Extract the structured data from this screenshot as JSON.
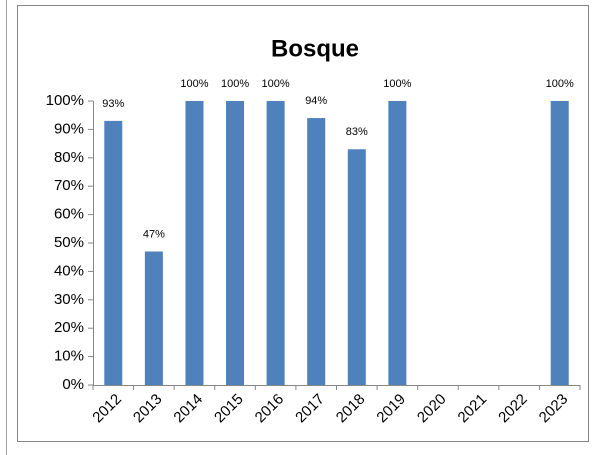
{
  "chart_data": {
    "type": "bar",
    "title": "Bosque",
    "categories": [
      "2012",
      "2013",
      "2014",
      "2015",
      "2016",
      "2017",
      "2018",
      "2019",
      "2020",
      "2021",
      "2022",
      "2023"
    ],
    "values": [
      93,
      47,
      100,
      100,
      100,
      94,
      83,
      100,
      null,
      null,
      null,
      100
    ],
    "value_labels": [
      "93%",
      "47%",
      "100%",
      "100%",
      "100%",
      "94%",
      "83%",
      "100%",
      null,
      null,
      null,
      "100%"
    ],
    "color": "#4f81bd",
    "ylim": [
      0,
      100
    ],
    "yticks": [
      {
        "value": 0,
        "label": "0%"
      },
      {
        "value": 10,
        "label": "10%"
      },
      {
        "value": 20,
        "label": "20%"
      },
      {
        "value": 30,
        "label": "30%"
      },
      {
        "value": 40,
        "label": "40%"
      },
      {
        "value": 50,
        "label": "50%"
      },
      {
        "value": 60,
        "label": "60%"
      },
      {
        "value": 70,
        "label": "70%"
      },
      {
        "value": 80,
        "label": "80%"
      },
      {
        "value": 90,
        "label": "90%"
      },
      {
        "value": 100,
        "label": "100%"
      }
    ],
    "grid": false
  }
}
